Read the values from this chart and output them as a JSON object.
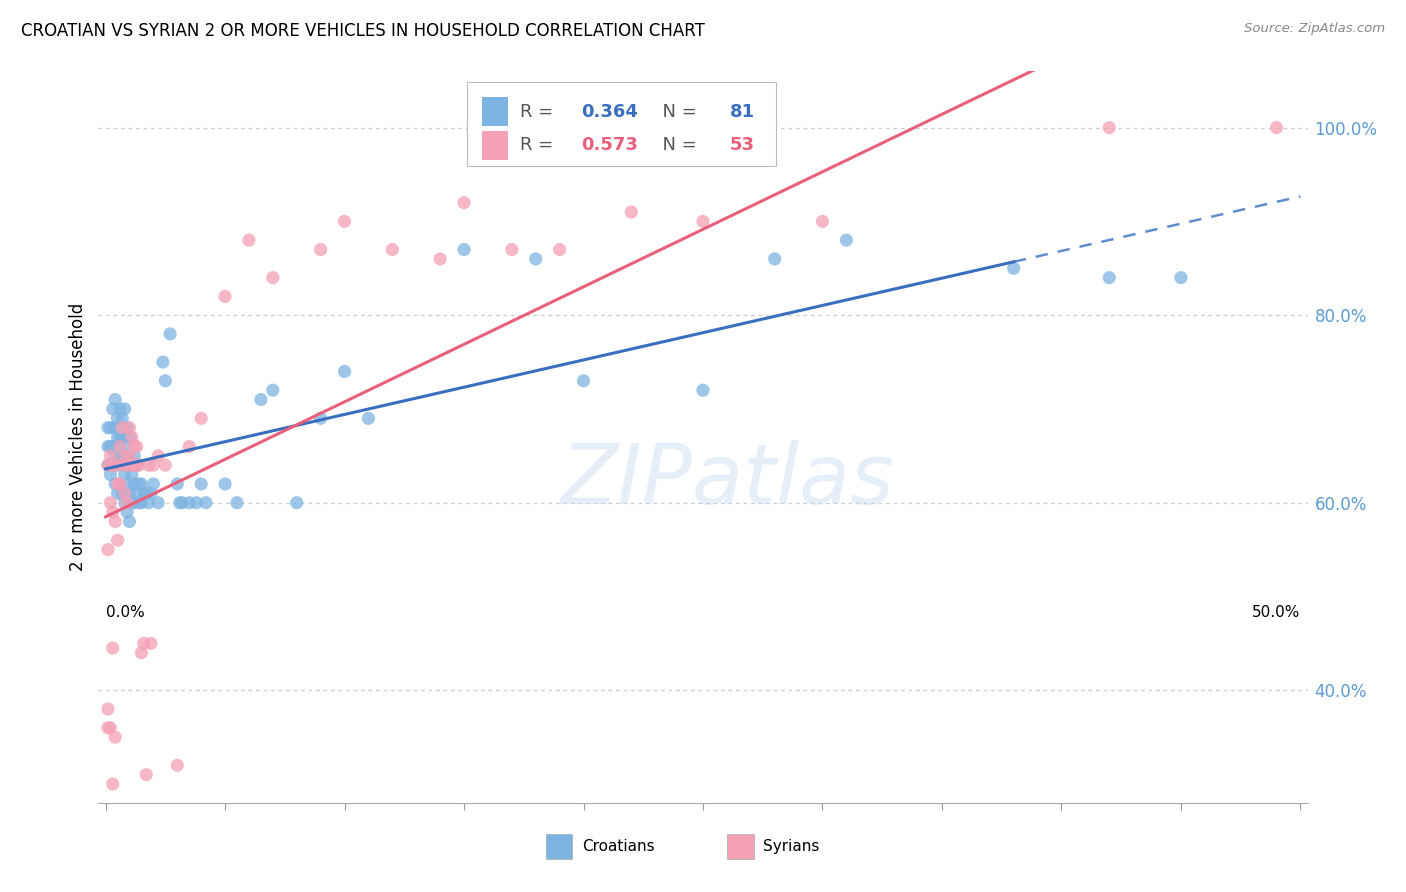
{
  "title": "CROATIAN VS SYRIAN 2 OR MORE VEHICLES IN HOUSEHOLD CORRELATION CHART",
  "source": "Source: ZipAtlas.com",
  "ylabel": "2 or more Vehicles in Household",
  "y_ticks": [
    0.4,
    0.6,
    0.8,
    1.0
  ],
  "y_tick_labels": [
    "40.0%",
    "60.0%",
    "80.0%",
    "100.0%"
  ],
  "xlim": [
    -0.003,
    0.503
  ],
  "ylim": [
    0.28,
    1.06
  ],
  "color_croatian": "#7EB4E2",
  "color_syrian": "#F4A0B5",
  "line_color_croatian": "#3A6FBF",
  "line_color_syrian": "#E8607A",
  "r_croatian": "0.364",
  "n_croatian": "81",
  "r_syrian": "0.573",
  "n_syrian": "53",
  "croatian_x": [
    0.001,
    0.001,
    0.001,
    0.002,
    0.002,
    0.002,
    0.003,
    0.003,
    0.003,
    0.004,
    0.004,
    0.004,
    0.004,
    0.005,
    0.005,
    0.005,
    0.005,
    0.006,
    0.006,
    0.006,
    0.006,
    0.007,
    0.007,
    0.007,
    0.007,
    0.008,
    0.008,
    0.008,
    0.008,
    0.009,
    0.009,
    0.009,
    0.009,
    0.01,
    0.01,
    0.01,
    0.01,
    0.011,
    0.011,
    0.012,
    0.012,
    0.012,
    0.013,
    0.013,
    0.014,
    0.014,
    0.015,
    0.015,
    0.016,
    0.017,
    0.018,
    0.019,
    0.02,
    0.022,
    0.024,
    0.025,
    0.027,
    0.03,
    0.031,
    0.032,
    0.035,
    0.038,
    0.04,
    0.042,
    0.05,
    0.055,
    0.065,
    0.07,
    0.08,
    0.09,
    0.1,
    0.11,
    0.15,
    0.18,
    0.2,
    0.25,
    0.28,
    0.31,
    0.38,
    0.42,
    0.45
  ],
  "croatian_y": [
    0.64,
    0.66,
    0.68,
    0.63,
    0.66,
    0.68,
    0.64,
    0.66,
    0.7,
    0.62,
    0.65,
    0.68,
    0.71,
    0.61,
    0.64,
    0.67,
    0.69,
    0.62,
    0.65,
    0.67,
    0.7,
    0.61,
    0.64,
    0.67,
    0.69,
    0.6,
    0.63,
    0.66,
    0.7,
    0.59,
    0.62,
    0.65,
    0.68,
    0.58,
    0.61,
    0.64,
    0.67,
    0.6,
    0.63,
    0.6,
    0.62,
    0.65,
    0.61,
    0.64,
    0.6,
    0.62,
    0.6,
    0.62,
    0.61,
    0.61,
    0.6,
    0.61,
    0.62,
    0.6,
    0.75,
    0.73,
    0.78,
    0.62,
    0.6,
    0.6,
    0.6,
    0.6,
    0.62,
    0.6,
    0.62,
    0.6,
    0.71,
    0.72,
    0.6,
    0.69,
    0.74,
    0.69,
    0.87,
    0.86,
    0.73,
    0.72,
    0.86,
    0.88,
    0.85,
    0.84,
    0.84
  ],
  "syrian_x": [
    0.001,
    0.001,
    0.002,
    0.002,
    0.003,
    0.003,
    0.004,
    0.004,
    0.005,
    0.005,
    0.006,
    0.006,
    0.007,
    0.007,
    0.008,
    0.008,
    0.009,
    0.009,
    0.01,
    0.01,
    0.011,
    0.011,
    0.012,
    0.012,
    0.013,
    0.013,
    0.014,
    0.015,
    0.016,
    0.017,
    0.018,
    0.019,
    0.02,
    0.022,
    0.025,
    0.03,
    0.035,
    0.04,
    0.05,
    0.06,
    0.07,
    0.09,
    0.1,
    0.12,
    0.14,
    0.15,
    0.17,
    0.19,
    0.22,
    0.25,
    0.3,
    0.42,
    0.49
  ],
  "syrian_y": [
    0.55,
    0.64,
    0.6,
    0.65,
    0.59,
    0.64,
    0.58,
    0.64,
    0.56,
    0.62,
    0.62,
    0.66,
    0.64,
    0.68,
    0.61,
    0.65,
    0.6,
    0.64,
    0.65,
    0.68,
    0.64,
    0.67,
    0.64,
    0.66,
    0.64,
    0.66,
    0.64,
    0.44,
    0.45,
    0.31,
    0.64,
    0.45,
    0.64,
    0.65,
    0.64,
    0.32,
    0.66,
    0.69,
    0.82,
    0.88,
    0.84,
    0.87,
    0.9,
    0.87,
    0.86,
    0.92,
    0.87,
    0.87,
    0.91,
    0.9,
    0.9,
    1.0,
    1.0
  ],
  "syrian_extra_low_x": [
    0.001,
    0.001,
    0.002,
    0.003,
    0.003,
    0.004
  ],
  "syrian_extra_low_y": [
    0.38,
    0.36,
    0.36,
    0.445,
    0.3,
    0.35
  ],
  "watermark_text": "ZIPatlas"
}
